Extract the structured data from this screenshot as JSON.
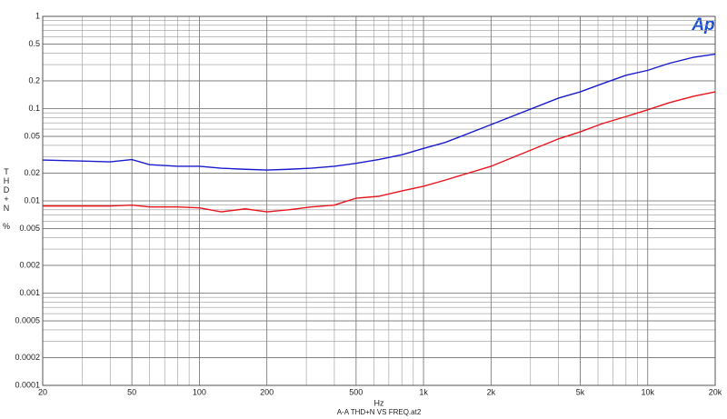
{
  "chart_data": {
    "type": "line",
    "logo": "Ap",
    "ylabel": "THD+N",
    "yunit": "%",
    "xlabel": "Hz",
    "caption": "A-A THD+N VS FREQ.at2",
    "log_x": true,
    "log_y": true,
    "grid": true,
    "minor_grid": true,
    "xlim": [
      20,
      20000
    ],
    "ylim": [
      0.0001,
      1
    ],
    "xticks": [
      20,
      50,
      100,
      200,
      500,
      {
        "value": 1000,
        "label": "1k"
      },
      {
        "value": 2000,
        "label": "2k"
      },
      {
        "value": 5000,
        "label": "5k"
      },
      {
        "value": 10000,
        "label": "10k"
      },
      {
        "value": 20000,
        "label": "20k"
      }
    ],
    "yticks": [
      1,
      0.5,
      0.2,
      0.1,
      0.05,
      0.02,
      0.01,
      0.005,
      0.002,
      0.001,
      0.0005,
      0.0002,
      0.0001
    ],
    "x": [
      20,
      30,
      40,
      50,
      60,
      80,
      100,
      125,
      160,
      200,
      250,
      315,
      400,
      500,
      630,
      800,
      1000,
      1250,
      2000,
      4000,
      5000,
      6300,
      8000,
      10000,
      12500,
      16000,
      20000
    ],
    "series": [
      {
        "color": "#1a1acc",
        "values": [
          0.0277,
          0.027,
          0.0265,
          0.028,
          0.0247,
          0.0237,
          0.0237,
          0.0226,
          0.022,
          0.0216,
          0.022,
          0.0226,
          0.0237,
          0.0255,
          0.028,
          0.0316,
          0.037,
          0.043,
          0.067,
          0.13,
          0.152,
          0.187,
          0.23,
          0.26,
          0.31,
          0.36,
          0.39
        ]
      },
      {
        "color": "#e8141e",
        "values": [
          0.0088,
          0.0088,
          0.0088,
          0.009,
          0.0086,
          0.0086,
          0.0084,
          0.0076,
          0.0082,
          0.0076,
          0.008,
          0.0086,
          0.009,
          0.0107,
          0.0112,
          0.0128,
          0.0144,
          0.0168,
          0.0237,
          0.047,
          0.056,
          0.069,
          0.082,
          0.097,
          0.116,
          0.136,
          0.152
        ]
      }
    ]
  }
}
